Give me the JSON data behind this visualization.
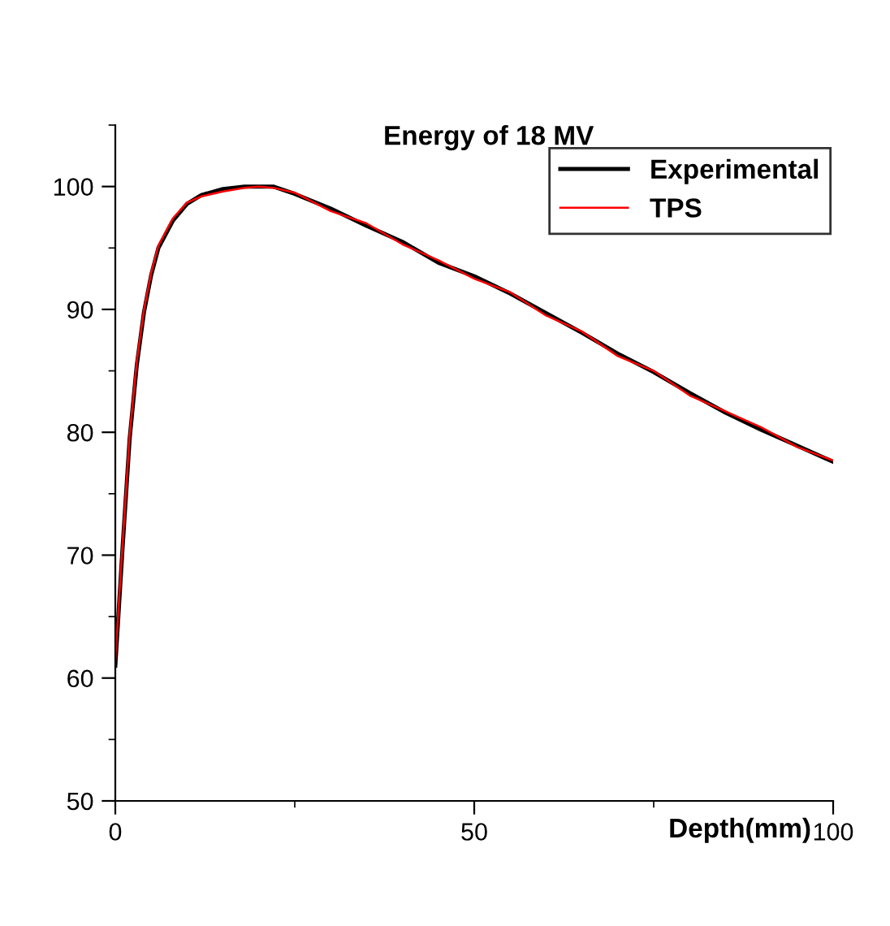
{
  "chart_data": {
    "type": "line",
    "title": "Energy of 18 MV",
    "xlabel": "Depth(mm)",
    "xlim": [
      0,
      100
    ],
    "ylim": [
      50,
      105
    ],
    "xticks": [
      0,
      {
        "value": 25,
        "label": null
      },
      50,
      {
        "value": 75,
        "label": null
      },
      100
    ],
    "yticks": [
      50,
      {
        "value": 55,
        "label": null
      },
      60,
      {
        "value": 65,
        "label": null
      },
      70,
      {
        "value": 75,
        "label": null
      },
      80,
      {
        "value": 85,
        "label": null
      },
      90,
      {
        "value": 95,
        "label": null
      },
      100,
      {
        "value": 105,
        "label": null
      }
    ],
    "legend": "top right",
    "grid": false,
    "line_style": "solid",
    "marker": "none",
    "series": [
      {
        "name": "Experimental",
        "color": "#000000",
        "x": [
          0,
          1,
          2,
          3,
          4,
          5,
          6,
          8,
          10,
          12,
          15,
          18,
          20,
          22,
          25,
          30,
          35,
          40,
          45,
          50,
          55,
          60,
          65,
          70,
          75,
          80,
          85,
          90,
          95,
          100
        ],
        "values": [
          61,
          70.5,
          79.5,
          85.5,
          89.8,
          92.8,
          95,
          97.2,
          98.6,
          99.3,
          99.8,
          100,
          100,
          100,
          99.4,
          98.2,
          96.8,
          95.5,
          93.8,
          92.7,
          91.3,
          89.7,
          88.1,
          86.4,
          84.9,
          83.2,
          81.6,
          80.2,
          78.9,
          77.6
        ]
      },
      {
        "name": "TPS",
        "color": "#ff0000",
        "x": [
          0,
          1,
          2,
          3,
          4,
          5,
          6,
          8,
          10,
          12,
          15,
          18,
          20,
          22,
          25,
          30,
          35,
          40,
          45,
          50,
          55,
          60,
          65,
          70,
          75,
          80,
          85,
          90,
          95,
          100
        ],
        "values": [
          61.5,
          70.8,
          79.8,
          85.8,
          90,
          93,
          95.2,
          97.4,
          98.7,
          99.2,
          99.6,
          99.9,
          100,
          99.9,
          99.5,
          98,
          97,
          95.3,
          94,
          92.5,
          91.4,
          89.5,
          88.2,
          86.2,
          85,
          83,
          81.7,
          80.4,
          78.8,
          77.7
        ]
      }
    ]
  }
}
